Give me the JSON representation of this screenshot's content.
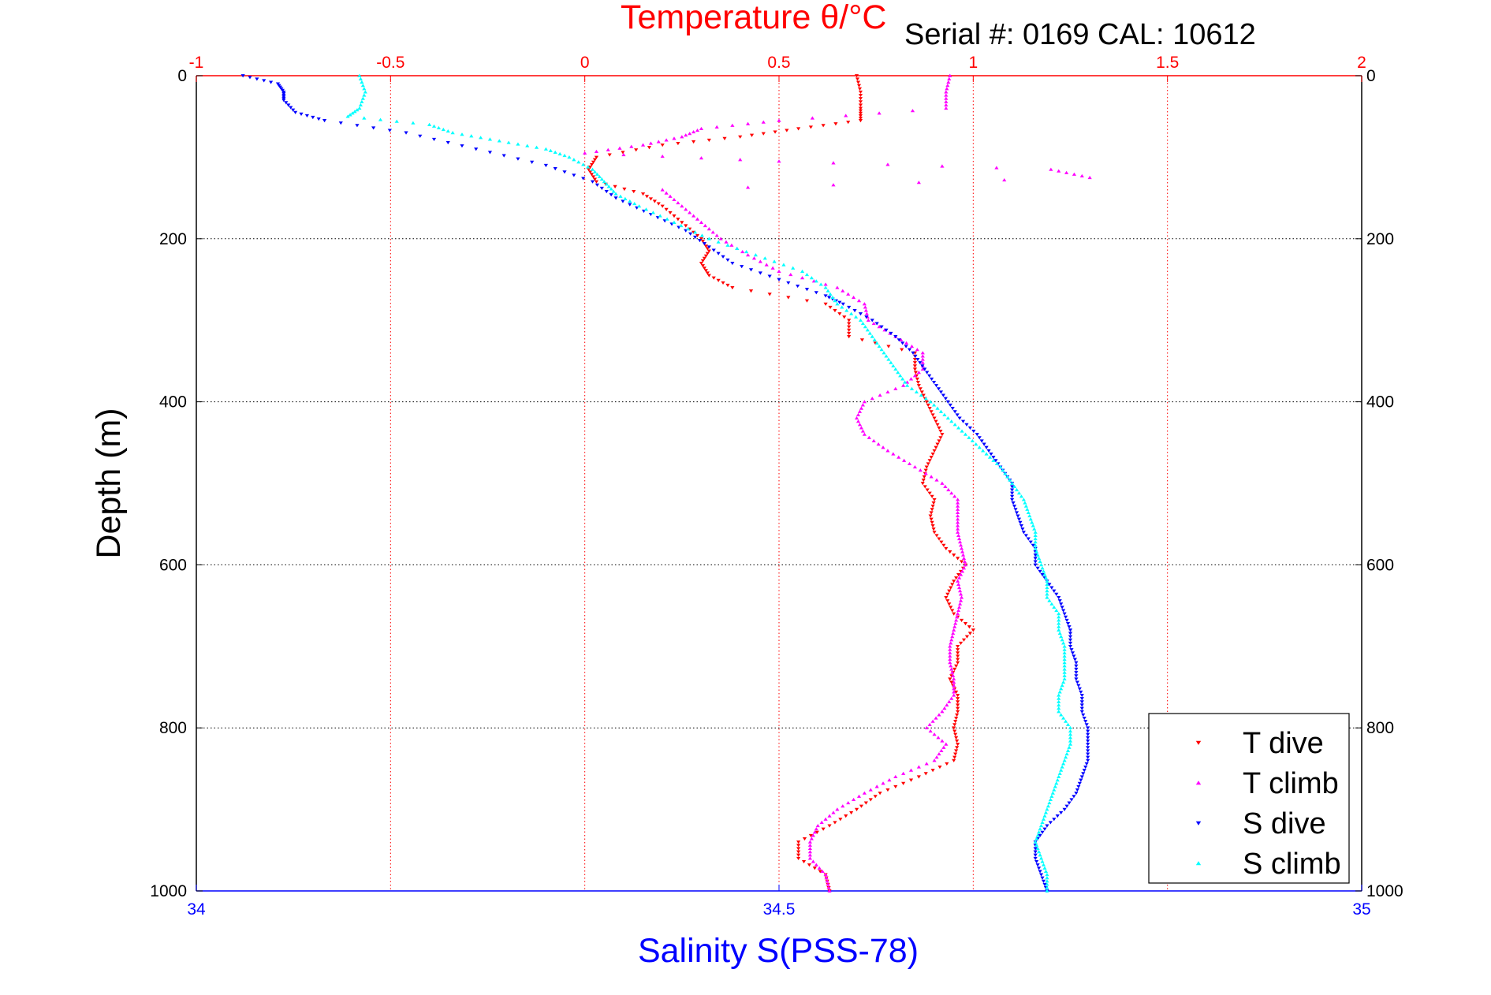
{
  "chart_data": {
    "type": "scatter",
    "title": "Temperature θ/°C",
    "serial_label": "Serial #: 0169 CAL: 10612",
    "xlabel": "Salinity S(PSS-78)",
    "ylabel": "Depth (m)",
    "temperature_axis": {
      "lim": [
        -1,
        2
      ],
      "ticks": [
        "-1",
        "-0.5",
        "0",
        "0.5",
        "1",
        "1.5",
        "2"
      ],
      "tick_values": [
        -1,
        -0.5,
        0,
        0.5,
        1,
        1.5,
        2
      ]
    },
    "salinity_axis": {
      "lim": [
        34,
        35
      ],
      "ticks": [
        "34",
        "34.5",
        "35"
      ],
      "tick_values": [
        34,
        34.5,
        35
      ]
    },
    "depth_axis": {
      "lim": [
        0,
        1000
      ],
      "reversed": true,
      "ticks": [
        "0",
        "200",
        "400",
        "600",
        "800",
        "1000"
      ],
      "tick_values": [
        0,
        200,
        400,
        600,
        800,
        1000
      ]
    },
    "grid": true,
    "legend_position": "bottom-right",
    "series": [
      {
        "name": "T dive",
        "variable": "temperature",
        "color": "#ff0000",
        "marker": "triangle-down",
        "depth": [
          0,
          20,
          40,
          55,
          65,
          75,
          85,
          100,
          115,
          130,
          145,
          160,
          180,
          200,
          215,
          230,
          245,
          260,
          280,
          300,
          320,
          340,
          360,
          380,
          400,
          420,
          440,
          460,
          480,
          500,
          520,
          540,
          560,
          580,
          600,
          620,
          640,
          660,
          680,
          700,
          720,
          740,
          760,
          780,
          800,
          820,
          840,
          860,
          880,
          900,
          920,
          940,
          960,
          980,
          1000
        ],
        "values": [
          0.7,
          0.71,
          0.71,
          0.71,
          0.55,
          0.4,
          0.2,
          0.03,
          0.01,
          0.03,
          0.15,
          0.2,
          0.25,
          0.3,
          0.32,
          0.3,
          0.32,
          0.38,
          0.62,
          0.68,
          0.68,
          0.85,
          0.85,
          0.86,
          0.88,
          0.9,
          0.92,
          0.9,
          0.88,
          0.87,
          0.9,
          0.89,
          0.9,
          0.93,
          0.98,
          0.95,
          0.93,
          0.95,
          1.0,
          0.96,
          0.96,
          0.94,
          0.96,
          0.96,
          0.95,
          0.96,
          0.95,
          0.86,
          0.76,
          0.7,
          0.63,
          0.55,
          0.55,
          0.62,
          0.63
        ]
      },
      {
        "name": "T climb",
        "variable": "temperature",
        "color": "#ff00ff",
        "marker": "triangle-up",
        "depth": [
          0,
          20,
          40,
          55,
          65,
          75,
          85,
          95,
          105,
          115,
          125,
          140,
          160,
          180,
          200,
          220,
          240,
          260,
          280,
          300,
          320,
          340,
          360,
          380,
          400,
          420,
          440,
          460,
          480,
          500,
          520,
          540,
          560,
          580,
          600,
          620,
          640,
          660,
          680,
          700,
          720,
          740,
          760,
          780,
          800,
          820,
          840,
          860,
          880,
          900,
          920,
          940,
          960,
          980,
          1000
        ],
        "values": [
          0.94,
          0.93,
          0.93,
          0.5,
          0.3,
          0.25,
          0.15,
          0.0,
          0.5,
          1.2,
          1.3,
          0.2,
          0.25,
          0.3,
          0.35,
          0.42,
          0.5,
          0.65,
          0.72,
          0.73,
          0.8,
          0.87,
          0.87,
          0.82,
          0.72,
          0.7,
          0.72,
          0.78,
          0.85,
          0.92,
          0.96,
          0.96,
          0.96,
          0.97,
          0.98,
          0.96,
          0.97,
          0.96,
          0.95,
          0.94,
          0.94,
          0.95,
          0.95,
          0.92,
          0.88,
          0.93,
          0.9,
          0.8,
          0.72,
          0.65,
          0.6,
          0.58,
          0.58,
          0.62,
          0.63
        ]
      },
      {
        "name": "S dive",
        "variable": "salinity",
        "color": "#0000ff",
        "marker": "triangle-down",
        "depth": [
          0,
          10,
          20,
          30,
          45,
          55,
          70,
          90,
          110,
          130,
          150,
          170,
          190,
          210,
          230,
          250,
          270,
          280,
          300,
          320,
          340,
          360,
          380,
          400,
          420,
          440,
          460,
          480,
          500,
          520,
          540,
          560,
          580,
          600,
          620,
          640,
          660,
          680,
          700,
          720,
          740,
          760,
          780,
          800,
          820,
          840,
          860,
          880,
          900,
          920,
          940,
          960,
          980,
          1000
        ],
        "values": [
          34.04,
          34.07,
          34.075,
          34.075,
          34.085,
          34.11,
          34.18,
          34.24,
          34.3,
          34.34,
          34.36,
          34.39,
          34.42,
          34.44,
          34.46,
          34.5,
          34.54,
          34.555,
          34.58,
          34.6,
          34.615,
          34.625,
          34.635,
          34.645,
          34.655,
          34.67,
          34.68,
          34.69,
          34.7,
          34.7,
          34.705,
          34.71,
          34.72,
          34.72,
          34.73,
          34.74,
          34.745,
          34.75,
          34.75,
          34.755,
          34.755,
          34.76,
          34.76,
          34.765,
          34.765,
          34.765,
          34.76,
          34.755,
          34.745,
          34.73,
          34.72,
          34.72,
          34.725,
          34.73
        ]
      },
      {
        "name": "S climb",
        "variable": "salinity",
        "color": "#00ffff",
        "marker": "triangle-up",
        "depth": [
          0,
          20,
          40,
          50,
          60,
          70,
          80,
          90,
          100,
          115,
          130,
          145,
          160,
          180,
          200,
          220,
          240,
          260,
          280,
          300,
          320,
          340,
          360,
          380,
          400,
          420,
          440,
          460,
          480,
          500,
          520,
          540,
          560,
          580,
          600,
          620,
          640,
          660,
          680,
          700,
          720,
          740,
          760,
          780,
          800,
          820,
          840,
          860,
          880,
          900,
          920,
          940,
          960,
          980,
          1000
        ],
        "values": [
          34.14,
          34.145,
          34.14,
          34.13,
          34.2,
          34.22,
          34.26,
          34.3,
          34.32,
          34.34,
          34.35,
          34.36,
          34.38,
          34.41,
          34.44,
          34.48,
          34.52,
          34.54,
          34.55,
          34.57,
          34.58,
          34.59,
          34.6,
          34.61,
          34.63,
          34.645,
          34.66,
          34.675,
          34.69,
          34.7,
          34.71,
          34.715,
          34.72,
          34.72,
          34.725,
          34.73,
          34.73,
          34.74,
          34.74,
          34.745,
          34.745,
          34.745,
          34.74,
          34.74,
          34.75,
          34.75,
          34.745,
          34.74,
          34.735,
          34.73,
          34.725,
          34.72,
          34.725,
          34.73,
          34.73
        ]
      }
    ]
  }
}
